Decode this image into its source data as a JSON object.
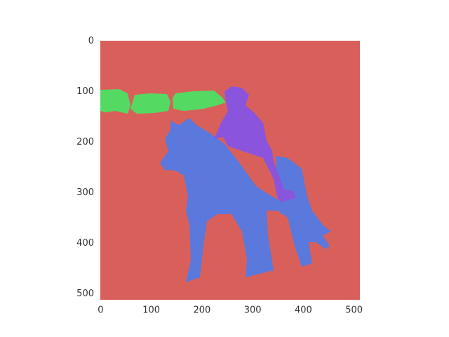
{
  "chart_data": {
    "type": "image",
    "xlim": [
      -0.5,
      511.5
    ],
    "ylim": [
      511.5,
      -0.5
    ],
    "xticks": [
      0,
      100,
      200,
      300,
      400,
      500
    ],
    "yticks": [
      0,
      100,
      200,
      300,
      400,
      500
    ]
  }
}
